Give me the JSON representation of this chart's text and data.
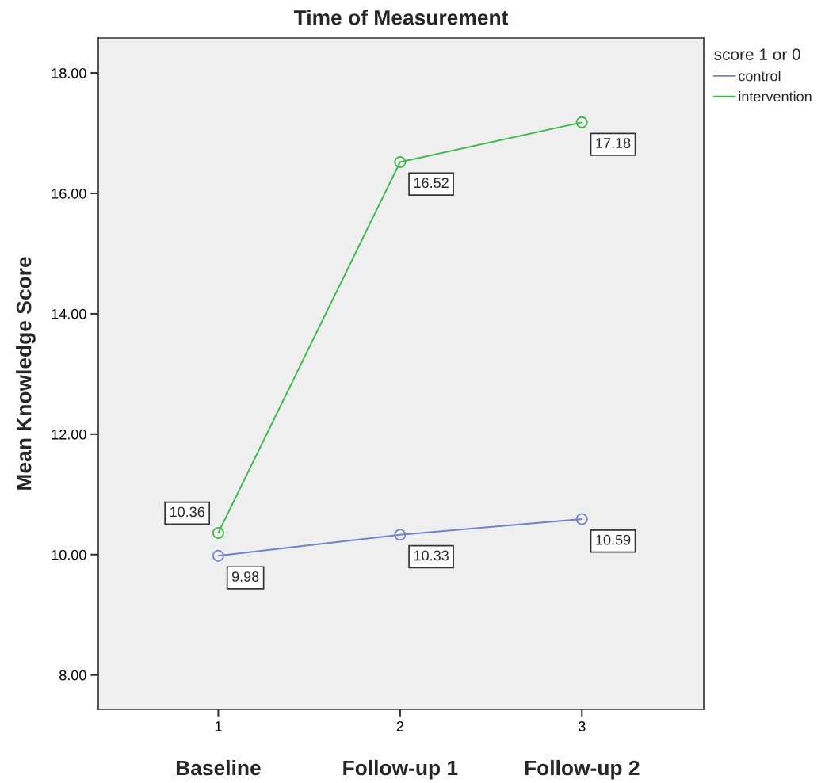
{
  "chart_data": {
    "type": "line",
    "title": "Time of Measurement",
    "ylabel": "Mean Knowledge Score",
    "legend_title": "score 1 or 0",
    "x": [
      1,
      2,
      3
    ],
    "series": [
      {
        "name": "control",
        "color": "#7083cc",
        "values": [
          9.98,
          10.33,
          10.59
        ]
      },
      {
        "name": "intervention",
        "color": "#3cb94a",
        "values": [
          10.36,
          16.52,
          17.18
        ]
      }
    ],
    "xlim": [
      0.34,
      3.67
    ],
    "xticks": [
      1,
      2,
      3
    ],
    "ylim": [
      7.43,
      18.58
    ],
    "yticks": [
      {
        "value": 8,
        "label": "8.00"
      },
      {
        "value": 10,
        "label": "10.00"
      },
      {
        "value": 12,
        "label": "12.00"
      },
      {
        "value": 14,
        "label": "14.00"
      },
      {
        "value": 16,
        "label": "16.00"
      },
      {
        "value": 18,
        "label": "18.00"
      }
    ],
    "annotations": [
      "Baseline",
      "Follow-up 1",
      "Follow-up 2"
    ],
    "data_labels": true,
    "marker": "circle",
    "line_style": "solid",
    "grid": false,
    "legend": "top right"
  }
}
